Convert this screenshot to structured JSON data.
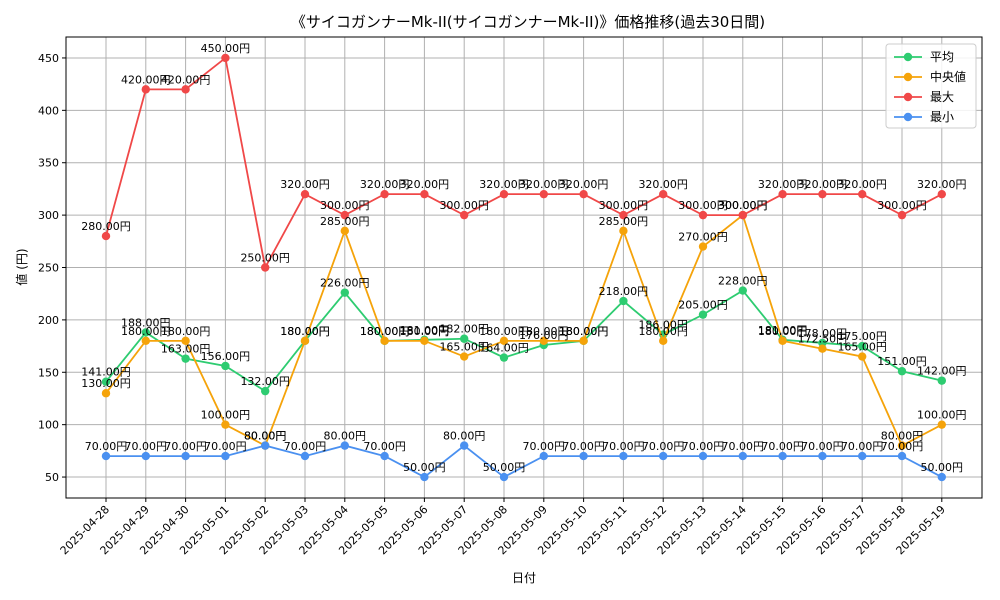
{
  "chart_data": {
    "type": "line",
    "title": "《サイコガンナーMk-II(サイコガンナーMk-II)》価格推移(過去30日間)",
    "xlabel": "日付",
    "ylabel": "値 (円)",
    "ylim": [
      30,
      470
    ],
    "yticks": [
      50,
      100,
      150,
      200,
      250,
      300,
      350,
      400,
      450
    ],
    "grid": true,
    "legend_position": "top-right",
    "label_suffix": "円",
    "categories": [
      "2025-04-28",
      "2025-04-29",
      "2025-04-30",
      "2025-05-01",
      "2025-05-02",
      "2025-05-03",
      "2025-05-04",
      "2025-05-05",
      "2025-05-06",
      "2025-05-07",
      "2025-05-08",
      "2025-05-09",
      "2025-05-10",
      "2025-05-11",
      "2025-05-12",
      "2025-05-13",
      "2025-05-14",
      "2025-05-15",
      "2025-05-16",
      "2025-05-17",
      "2025-05-18",
      "2025-05-19"
    ],
    "series": [
      {
        "name": "平均",
        "color": "#2ecc71",
        "values": [
          141,
          188,
          163,
          156,
          132,
          180,
          226,
          180,
          181,
          182,
          164,
          176,
          180,
          218,
          186,
          205,
          228,
          181,
          178,
          175,
          151,
          142
        ]
      },
      {
        "name": "中央値",
        "color": "#f5a30a",
        "values": [
          130,
          180,
          180,
          100,
          80,
          180,
          285,
          180,
          180,
          165,
          180,
          180,
          180,
          285,
          180,
          270,
          300,
          180,
          172.5,
          165,
          80,
          100
        ]
      },
      {
        "name": "最大",
        "color": "#f04848",
        "values": [
          280,
          420,
          420,
          450,
          250,
          320,
          300,
          320,
          320,
          300,
          320,
          320,
          320,
          300,
          320,
          300,
          300,
          320,
          320,
          320,
          300,
          320
        ]
      },
      {
        "name": "最小",
        "color": "#4a90f0",
        "values": [
          70,
          70,
          70,
          70,
          80,
          70,
          80,
          70,
          50,
          80,
          50,
          70,
          70,
          70,
          70,
          70,
          70,
          70,
          70,
          70,
          70,
          50
        ]
      }
    ]
  }
}
